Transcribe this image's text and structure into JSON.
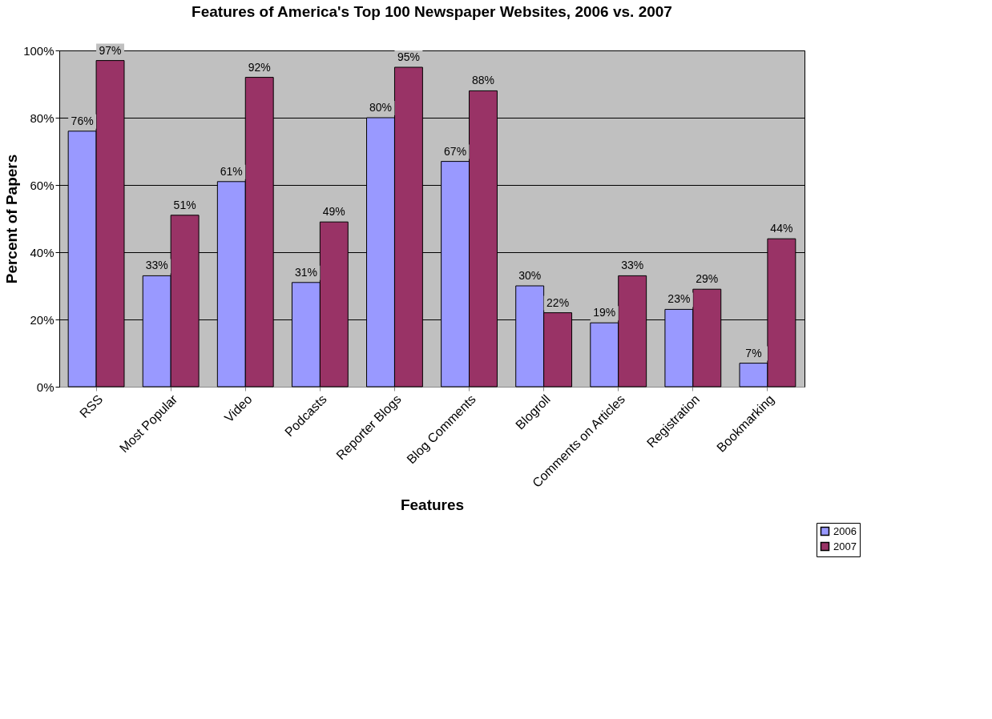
{
  "chart_data": {
    "type": "bar",
    "title": "Features of America's Top 100 Newspaper Websites, 2006 vs. 2007",
    "xlabel": "Features",
    "ylabel": "Percent of Papers",
    "categories": [
      "RSS",
      "Most Popular",
      "Video",
      "Podcasts",
      "Reporter Blogs",
      "Blog Comments",
      "Blogroll",
      "Comments on Articles",
      "Registration",
      "Bookmarking"
    ],
    "series": [
      {
        "name": "2006",
        "color": "#9999ff",
        "values": [
          76,
          33,
          61,
          31,
          80,
          67,
          30,
          19,
          23,
          7
        ],
        "value_labels": [
          "76%",
          "33%",
          "61%",
          "31%",
          "80%",
          "67%",
          "30%",
          "19%",
          "23%",
          "7%"
        ]
      },
      {
        "name": "2007",
        "color": "#993366",
        "values": [
          97,
          51,
          92,
          49,
          95,
          88,
          22,
          33,
          29,
          44
        ],
        "value_labels": [
          "97%",
          "51%",
          "92%",
          "49%",
          "95%",
          "88%",
          "22%",
          "33%",
          "29%",
          "44%"
        ]
      }
    ],
    "ylim": [
      0,
      100
    ],
    "yticks": [
      {
        "value": 0,
        "label": "0%"
      },
      {
        "value": 20,
        "label": "20%"
      },
      {
        "value": 40,
        "label": "40%"
      },
      {
        "value": 60,
        "label": "60%"
      },
      {
        "value": 80,
        "label": "80%"
      },
      {
        "value": 100,
        "label": "100%"
      }
    ],
    "grid": "y",
    "legend": "bottom right"
  }
}
